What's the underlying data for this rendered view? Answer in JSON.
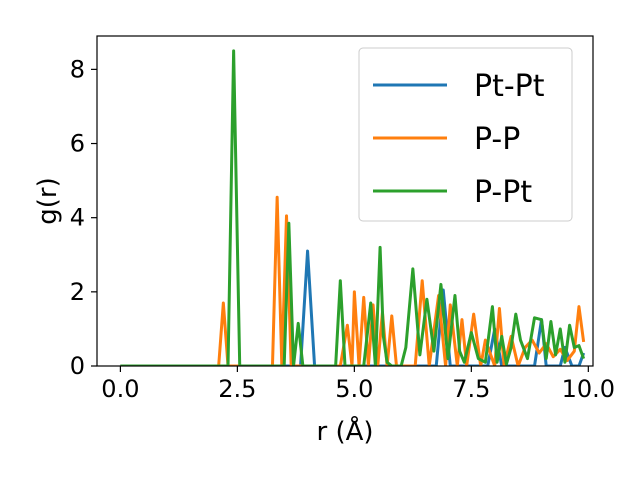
{
  "chart_data": {
    "type": "line",
    "xlabel": "r (Å)",
    "ylabel": "g(r)",
    "xlim": [
      -0.5,
      10.1
    ],
    "ylim": [
      0,
      8.9
    ],
    "xticks": [
      0.0,
      2.5,
      5.0,
      7.5,
      10.0
    ],
    "xtick_labels": [
      "0.0",
      "2.5",
      "5.0",
      "7.5",
      "10.0"
    ],
    "yticks": [
      0,
      2,
      4,
      6,
      8
    ],
    "ytick_labels": [
      "0",
      "2",
      "4",
      "6",
      "8"
    ],
    "grid": false,
    "legend_position": "top-right",
    "series": [
      {
        "name": "Pt-Pt",
        "color": "#1f77b4",
        "x": [
          0.0,
          3.85,
          4.0,
          4.15,
          6.75,
          6.9,
          7.05,
          7.85,
          8.0,
          8.15,
          8.85,
          9.0,
          9.1,
          9.4,
          9.5,
          9.65,
          9.8,
          9.9
        ],
        "y": [
          0,
          0,
          3.1,
          0,
          0,
          2.05,
          0,
          0,
          1.0,
          0,
          0,
          1.25,
          0,
          0,
          0.5,
          0,
          0,
          0.35
        ]
      },
      {
        "name": "P-P",
        "color": "#ff7f0e",
        "x": [
          0.0,
          2.1,
          2.2,
          2.3,
          3.25,
          3.35,
          3.45,
          3.55,
          3.65,
          4.7,
          4.85,
          4.95,
          5.0,
          5.1,
          5.2,
          5.3,
          5.4,
          5.5,
          5.6,
          5.7,
          5.8,
          5.9,
          6.3,
          6.45,
          6.6,
          6.8,
          6.95,
          7.05,
          7.2,
          7.3,
          7.4,
          7.55,
          7.7,
          7.8,
          8.0,
          8.1,
          8.2,
          8.35,
          8.5,
          8.65,
          8.8,
          8.95,
          9.1,
          9.25,
          9.4,
          9.55,
          9.7,
          9.8,
          9.9
        ],
        "y": [
          0,
          0,
          1.7,
          0,
          0,
          4.55,
          0,
          4.05,
          0,
          0,
          1.1,
          0,
          2.0,
          0,
          1.85,
          0,
          1.65,
          0,
          1.45,
          0,
          1.35,
          0,
          0,
          2.3,
          0,
          1.9,
          0,
          1.65,
          0,
          1.25,
          0,
          1.4,
          0,
          0.7,
          0,
          1.55,
          0,
          0.8,
          0,
          0.5,
          0.7,
          0.35,
          0.6,
          0.25,
          0.45,
          0.15,
          0.4,
          1.6,
          0.65
        ]
      },
      {
        "name": "P-Pt",
        "color": "#2ca02c",
        "x": [
          0.0,
          2.3,
          2.42,
          2.55,
          3.5,
          3.6,
          3.7,
          3.8,
          3.9,
          4.0,
          4.6,
          4.7,
          4.8,
          5.2,
          5.35,
          5.45,
          5.55,
          5.62,
          5.7,
          5.8,
          6.0,
          6.1,
          6.25,
          6.4,
          6.55,
          6.7,
          6.85,
          7.0,
          7.15,
          7.25,
          7.35,
          7.5,
          7.65,
          7.8,
          7.95,
          8.05,
          8.15,
          8.25,
          8.35,
          8.45,
          8.55,
          8.7,
          8.85,
          9.0,
          9.1,
          9.2,
          9.3,
          9.4,
          9.5,
          9.6,
          9.7,
          9.8,
          9.9
        ],
        "y": [
          0,
          0,
          8.5,
          0,
          0,
          3.85,
          0,
          1.15,
          0,
          0,
          0,
          2.3,
          0,
          0,
          1.7,
          0,
          3.2,
          0.8,
          0.1,
          0,
          0,
          0.5,
          2.62,
          0.3,
          1.8,
          0.4,
          2.2,
          0.2,
          1.9,
          0.4,
          0.1,
          0.9,
          0.2,
          0.1,
          1.6,
          0.1,
          0.8,
          0.05,
          0.5,
          1.4,
          0.7,
          0.2,
          1.3,
          1.25,
          0.2,
          1.2,
          0.3,
          1.0,
          0.1,
          1.1,
          0.5,
          0.55,
          0.2
        ]
      }
    ]
  }
}
